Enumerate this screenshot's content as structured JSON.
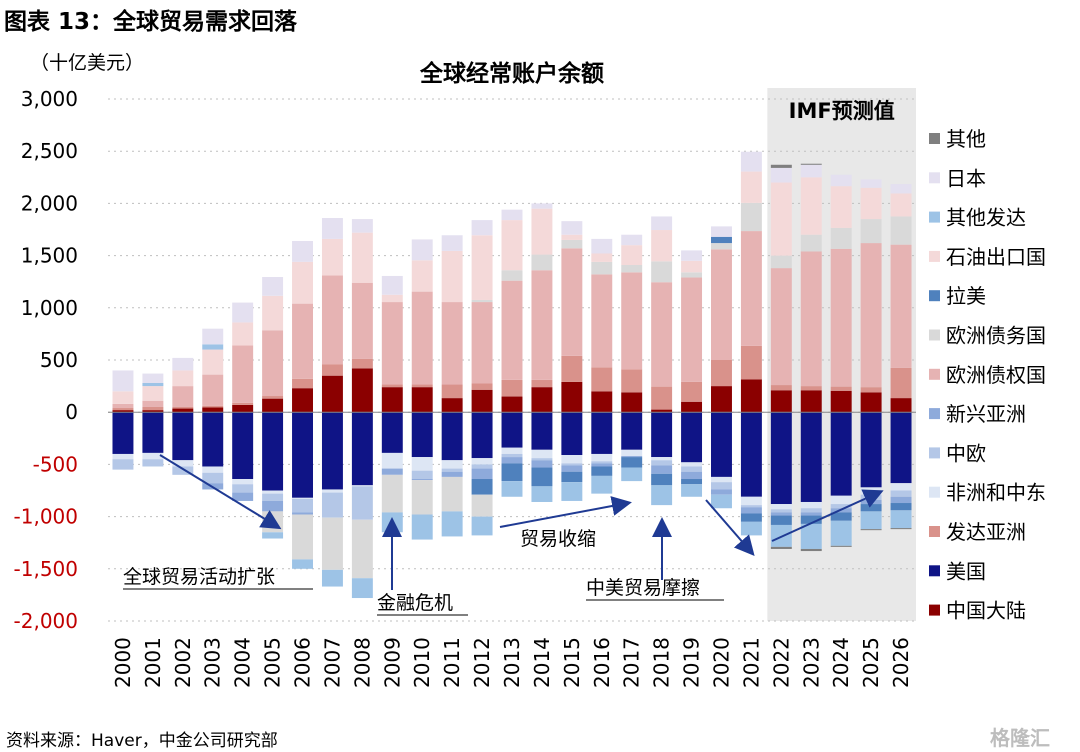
{
  "figure_title": "图表 13：全球贸易需求回落",
  "unit_label": "（十亿美元）",
  "source": "资料来源：Haver，中金公司研究部",
  "watermark": "格隆汇",
  "forecast_label": "IMF预测值",
  "annotations": {
    "expansion": "全球贸易活动扩张",
    "financial_crisis": "金融危机",
    "trade_shrink": "贸易收缩",
    "trade_friction": "中美贸易摩擦"
  },
  "colors": {
    "other": "#7f7f7f",
    "japan": "#e4e0f0",
    "other_adv": "#9dc3e6",
    "oil": "#f4d9d9",
    "latam": "#4f81bd",
    "euro_debtor": "#d9d9d9",
    "euro_creditor": "#e6b3b3",
    "em_asia": "#8eaadb",
    "ceec": "#b4c7e7",
    "africa_me": "#dde6f4",
    "adv_asia": "#d9928b",
    "usa": "#0f1486",
    "china": "#8b0000",
    "forecast_bg": "#e8e8e8"
  },
  "chart_data": {
    "type": "bar",
    "stacked": true,
    "title": "全球经常账户余额",
    "ylabel": "（十亿美元）",
    "ylim": [
      -2000,
      3000
    ],
    "yticks": [
      -2000,
      -1500,
      -1000,
      -500,
      0,
      500,
      1000,
      1500,
      2000,
      2500,
      3000
    ],
    "ytick_labels": [
      "-2,000",
      "-1,500",
      "-1,000",
      "-500",
      "0",
      "500",
      "1,000",
      "1,500",
      "2,000",
      "2,500",
      "3,000"
    ],
    "categories": [
      "2000",
      "2001",
      "2002",
      "2003",
      "2004",
      "2005",
      "2006",
      "2007",
      "2008",
      "2009",
      "2010",
      "2011",
      "2012",
      "2013",
      "2014",
      "2015",
      "2016",
      "2017",
      "2018",
      "2019",
      "2020",
      "2021",
      "2022",
      "2023",
      "2024",
      "2025",
      "2026"
    ],
    "forecast_start": "2022",
    "legend": [
      {
        "key": "other",
        "label": "其他"
      },
      {
        "key": "japan",
        "label": "日本"
      },
      {
        "key": "other_adv",
        "label": "其他发达"
      },
      {
        "key": "oil",
        "label": "石油出口国"
      },
      {
        "key": "latam",
        "label": "拉美"
      },
      {
        "key": "euro_debtor",
        "label": "欧洲债务国"
      },
      {
        "key": "euro_creditor",
        "label": "欧洲债权国"
      },
      {
        "key": "em_asia",
        "label": "新兴亚洲"
      },
      {
        "key": "ceec",
        "label": "中欧"
      },
      {
        "key": "africa_me",
        "label": "非洲和中东"
      },
      {
        "key": "adv_asia",
        "label": "发达亚洲"
      },
      {
        "key": "usa",
        "label": "美国"
      },
      {
        "key": "china",
        "label": "中国大陆"
      }
    ],
    "positive_order": [
      "china",
      "adv_asia",
      "euro_creditor",
      "euro_debtor",
      "latam",
      "oil",
      "other_adv",
      "japan",
      "other"
    ],
    "negative_order": [
      "usa",
      "africa_me",
      "ceec",
      "em_asia",
      "latam",
      "euro_debtor",
      "other_adv",
      "other"
    ],
    "positive": {
      "china": [
        20,
        20,
        35,
        45,
        70,
        130,
        230,
        350,
        420,
        240,
        240,
        135,
        215,
        150,
        240,
        290,
        200,
        190,
        25,
        100,
        250,
        315,
        210,
        210,
        205,
        190,
        135
      ],
      "adv_asia": [
        20,
        30,
        15,
        15,
        20,
        25,
        90,
        110,
        90,
        25,
        25,
        130,
        60,
        160,
        70,
        250,
        230,
        220,
        220,
        190,
        250,
        320,
        50,
        40,
        40,
        50,
        290
      ],
      "euro_creditor": [
        40,
        60,
        200,
        300,
        550,
        630,
        720,
        850,
        730,
        790,
        890,
        790,
        780,
        950,
        1050,
        1030,
        890,
        930,
        1000,
        1000,
        1060,
        1100,
        1120,
        1290,
        1320,
        1380,
        1180
      ],
      "euro_debtor": [
        0,
        0,
        0,
        0,
        0,
        0,
        0,
        0,
        0,
        0,
        0,
        0,
        20,
        100,
        150,
        80,
        120,
        70,
        200,
        50,
        60,
        270,
        120,
        160,
        200,
        230,
        270
      ],
      "latam": [
        0,
        0,
        0,
        0,
        0,
        0,
        0,
        0,
        0,
        0,
        0,
        0,
        0,
        0,
        0,
        0,
        0,
        0,
        0,
        0,
        60,
        0,
        0,
        0,
        0,
        0,
        0
      ],
      "oil": [
        120,
        140,
        150,
        240,
        220,
        330,
        400,
        350,
        480,
        70,
        300,
        490,
        620,
        480,
        440,
        50,
        80,
        190,
        300,
        110,
        0,
        300,
        700,
        550,
        400,
        300,
        220
      ],
      "other_adv": [
        0,
        30,
        0,
        50,
        0,
        0,
        0,
        0,
        0,
        0,
        0,
        0,
        0,
        0,
        0,
        0,
        0,
        0,
        0,
        0,
        0,
        0,
        0,
        0,
        0,
        0,
        0
      ],
      "japan": [
        200,
        90,
        120,
        150,
        190,
        180,
        200,
        200,
        130,
        180,
        200,
        150,
        145,
        100,
        50,
        130,
        140,
        100,
        130,
        100,
        100,
        190,
        140,
        120,
        110,
        80,
        90
      ],
      "other": [
        0,
        0,
        0,
        0,
        0,
        0,
        0,
        0,
        0,
        0,
        0,
        0,
        0,
        0,
        0,
        0,
        0,
        0,
        0,
        0,
        0,
        0,
        30,
        10,
        0,
        0,
        0
      ]
    },
    "negative": {
      "usa": [
        -400,
        -390,
        -460,
        -520,
        -640,
        -750,
        -820,
        -740,
        -700,
        -390,
        -430,
        -460,
        -440,
        -340,
        -360,
        -410,
        -400,
        -360,
        -430,
        -480,
        -620,
        -810,
        -880,
        -860,
        -800,
        -720,
        -680
      ],
      "africa_me": [
        -50,
        -60,
        -60,
        -60,
        -50,
        -30,
        -10,
        -30,
        -10,
        -150,
        -130,
        -80,
        -60,
        -60,
        -80,
        -80,
        -70,
        -60,
        -30,
        -40,
        -50,
        -80,
        -50,
        -60,
        -80,
        -70,
        -70
      ],
      "ceec": [
        -100,
        -70,
        -80,
        -100,
        -80,
        -70,
        -130,
        -240,
        -320,
        0,
        -80,
        -30,
        -40,
        -30,
        -20,
        -20,
        -20,
        0,
        -50,
        -50,
        -70,
        -20,
        -30,
        -40,
        -40,
        -50,
        -60
      ],
      "em_asia": [
        0,
        0,
        0,
        -60,
        -80,
        -100,
        -20,
        0,
        0,
        -60,
        -10,
        -50,
        -100,
        -60,
        -70,
        -60,
        -30,
        -10,
        -80,
        -70,
        -50,
        -60,
        -30,
        -30,
        -40,
        -40,
        -60
      ],
      "latam": [
        0,
        0,
        0,
        0,
        0,
        0,
        0,
        0,
        0,
        0,
        0,
        0,
        -150,
        -170,
        -180,
        -100,
        -90,
        -100,
        -110,
        -50,
        0,
        -80,
        -90,
        -80,
        -80,
        -70,
        -70
      ],
      "euro_debtor": [
        0,
        0,
        0,
        0,
        0,
        -200,
        -430,
        -500,
        -560,
        -360,
        -330,
        -330,
        -210,
        0,
        0,
        0,
        0,
        0,
        0,
        0,
        0,
        0,
        0,
        0,
        0,
        0,
        0
      ],
      "other_adv": [
        0,
        0,
        0,
        0,
        0,
        -60,
        -90,
        -160,
        -190,
        -190,
        -240,
        -240,
        -180,
        -150,
        -150,
        -180,
        -170,
        -130,
        -190,
        -120,
        -130,
        -130,
        -210,
        -240,
        -240,
        -170,
        -170
      ],
      "other": [
        0,
        0,
        0,
        0,
        0,
        0,
        0,
        0,
        0,
        0,
        0,
        0,
        0,
        0,
        0,
        0,
        0,
        0,
        0,
        0,
        0,
        0,
        -20,
        -20,
        -10,
        -10,
        -10
      ]
    }
  }
}
